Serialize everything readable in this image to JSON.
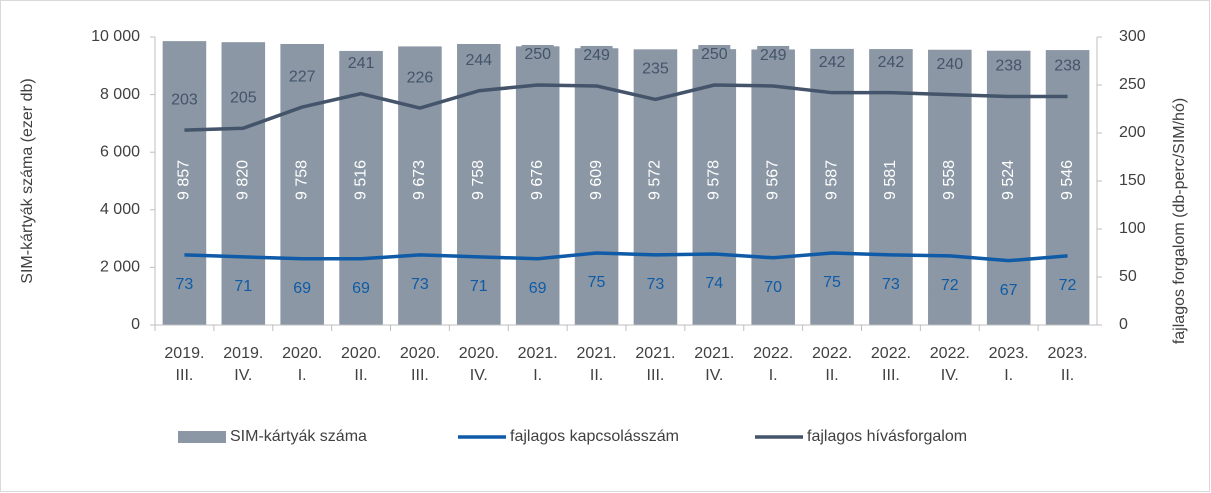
{
  "chart_data": {
    "type": "bar-line",
    "y_label": "SIM-kártyák száma (ezer db)",
    "y2_label": "fajlagos forgalom (db-perc/SIM/hó)",
    "categories": [
      [
        "2019.",
        "III."
      ],
      [
        "2019.",
        "IV."
      ],
      [
        "2020.",
        "I."
      ],
      [
        "2020.",
        "II."
      ],
      [
        "2020.",
        "III."
      ],
      [
        "2020.",
        "IV."
      ],
      [
        "2021.",
        "I."
      ],
      [
        "2021.",
        "II."
      ],
      [
        "2021.",
        "III."
      ],
      [
        "2021.",
        "IV."
      ],
      [
        "2022.",
        "I."
      ],
      [
        "2022.",
        "II."
      ],
      [
        "2022.",
        "III."
      ],
      [
        "2022.",
        "IV."
      ],
      [
        "2023.",
        "I."
      ],
      [
        "2023.",
        "II."
      ]
    ],
    "series": [
      {
        "name": "SIM-kártyák száma",
        "type": "bar",
        "color": "#8b97a4",
        "values": [
          9857,
          9820,
          9758,
          9516,
          9673,
          9758,
          9676,
          9609,
          9572,
          9578,
          9567,
          9587,
          9581,
          9558,
          9524,
          9546
        ],
        "value_labels": [
          "9 857",
          "9 820",
          "9 758",
          "9 516",
          "9 673",
          "9 758",
          "9 676",
          "9 609",
          "9 572",
          "9 578",
          "9 567",
          "9 587",
          "9 581",
          "9 558",
          "9 524",
          "9 546"
        ]
      },
      {
        "name": "fajlagos kapcsolásszám",
        "type": "line",
        "axis": "y2",
        "color": "#0f5ba7",
        "values": [
          73,
          71,
          69,
          69,
          73,
          71,
          69,
          75,
          73,
          74,
          70,
          75,
          73,
          72,
          67,
          72
        ]
      },
      {
        "name": "fajlagos hívásforgalom",
        "type": "line",
        "axis": "y2",
        "color": "#44546a",
        "values": [
          203,
          205,
          227,
          241,
          226,
          244,
          250,
          249,
          235,
          250,
          249,
          242,
          242,
          240,
          238,
          238
        ]
      }
    ],
    "ylim": [
      0,
      10000
    ],
    "yticks": [
      0,
      {
        "value": 2000,
        "label": "2 000"
      },
      {
        "value": 4000,
        "label": "4 000"
      },
      {
        "value": 6000,
        "label": "6 000"
      },
      {
        "value": 8000,
        "label": "8 000"
      },
      {
        "value": 10000,
        "label": "10 000"
      }
    ],
    "y2lim": [
      0,
      300
    ],
    "y2ticks": [
      0,
      50,
      100,
      150,
      200,
      250,
      300
    ],
    "legend": "bottom",
    "grid": false
  }
}
